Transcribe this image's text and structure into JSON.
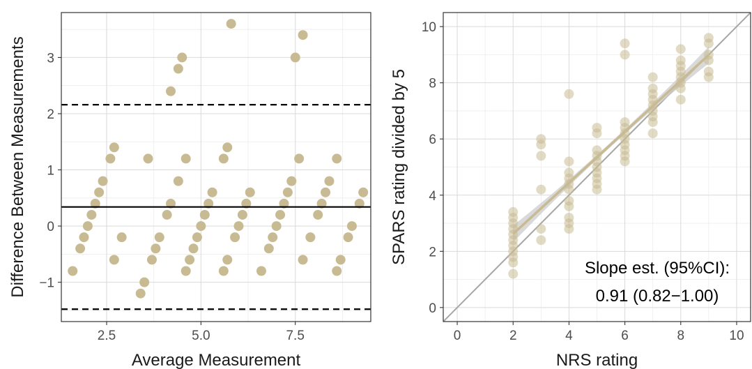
{
  "chart_data": [
    {
      "type": "scatter",
      "xlabel": "Average Measurement",
      "ylabel": "Difference Between Measurements",
      "xlim": [
        1.3,
        9.5
      ],
      "ylim": [
        -1.7,
        3.8
      ],
      "x_ticks": [
        2.5,
        5.0,
        7.5
      ],
      "x_tick_labels": [
        "2.5",
        "5.0",
        "7.5"
      ],
      "y_ticks": [
        -1,
        0,
        1,
        2,
        3
      ],
      "y_tick_labels": [
        "−1",
        "0",
        "1",
        "2",
        "3"
      ],
      "grid": true,
      "point_color": "#c8bb93",
      "reference_lines": [
        {
          "type": "mean",
          "value": 0.34,
          "style": "solid"
        },
        {
          "type": "upper_loa",
          "value": 2.16,
          "style": "dashed"
        },
        {
          "type": "lower_loa",
          "value": -1.48,
          "style": "dashed"
        }
      ],
      "points": [
        [
          1.6,
          -0.8
        ],
        [
          1.8,
          -0.4
        ],
        [
          1.9,
          -0.2
        ],
        [
          2.0,
          0.0
        ],
        [
          2.1,
          0.2
        ],
        [
          2.2,
          0.4
        ],
        [
          2.3,
          0.6
        ],
        [
          2.4,
          0.8
        ],
        [
          2.6,
          1.2
        ],
        [
          2.7,
          1.4
        ],
        [
          2.7,
          -0.6
        ],
        [
          2.9,
          -0.2
        ],
        [
          3.4,
          -1.2
        ],
        [
          3.5,
          -1.0
        ],
        [
          3.6,
          1.2
        ],
        [
          3.7,
          -0.6
        ],
        [
          3.8,
          -0.4
        ],
        [
          3.9,
          -0.2
        ],
        [
          4.1,
          0.2
        ],
        [
          4.2,
          0.4
        ],
        [
          4.2,
          2.4
        ],
        [
          4.4,
          2.8
        ],
        [
          4.4,
          0.8
        ],
        [
          4.5,
          3.0
        ],
        [
          4.6,
          1.2
        ],
        [
          4.6,
          -0.8
        ],
        [
          4.7,
          -0.6
        ],
        [
          4.8,
          -0.4
        ],
        [
          4.9,
          -0.2
        ],
        [
          5.0,
          0.0
        ],
        [
          5.1,
          0.2
        ],
        [
          5.2,
          0.4
        ],
        [
          5.3,
          0.6
        ],
        [
          5.6,
          1.2
        ],
        [
          5.6,
          -0.8
        ],
        [
          5.7,
          1.4
        ],
        [
          5.7,
          -0.6
        ],
        [
          5.8,
          3.6
        ],
        [
          5.9,
          -0.2
        ],
        [
          6.0,
          0.0
        ],
        [
          6.1,
          0.2
        ],
        [
          6.2,
          0.4
        ],
        [
          6.3,
          0.6
        ],
        [
          6.6,
          -0.8
        ],
        [
          6.8,
          -0.4
        ],
        [
          6.9,
          -0.2
        ],
        [
          7.0,
          0.0
        ],
        [
          7.1,
          0.2
        ],
        [
          7.2,
          0.4
        ],
        [
          7.3,
          0.6
        ],
        [
          7.4,
          0.8
        ],
        [
          7.5,
          3.0
        ],
        [
          7.6,
          1.2
        ],
        [
          7.7,
          -0.6
        ],
        [
          7.7,
          3.4
        ],
        [
          7.9,
          -0.2
        ],
        [
          8.1,
          0.2
        ],
        [
          8.2,
          0.4
        ],
        [
          8.3,
          0.6
        ],
        [
          8.4,
          0.8
        ],
        [
          8.6,
          1.2
        ],
        [
          8.6,
          -0.8
        ],
        [
          8.7,
          -0.6
        ],
        [
          8.9,
          -0.2
        ],
        [
          9.0,
          0.0
        ],
        [
          9.2,
          0.4
        ],
        [
          9.3,
          0.6
        ]
      ]
    },
    {
      "type": "scatter",
      "xlabel": "NRS rating",
      "ylabel": "SPARS rating divided by 5",
      "xlim": [
        -0.5,
        10.5
      ],
      "ylim": [
        -0.5,
        10.5
      ],
      "x_ticks": [
        0,
        2,
        4,
        6,
        8,
        10
      ],
      "x_tick_labels": [
        "0",
        "2",
        "4",
        "6",
        "8",
        "10"
      ],
      "y_ticks": [
        0,
        2,
        4,
        6,
        8,
        10
      ],
      "y_tick_labels": [
        "0",
        "2",
        "4",
        "6",
        "8",
        "10"
      ],
      "grid": true,
      "point_color": "#c8bb93",
      "identity_line_color": "#a6a6a6",
      "fit_line_color": "#c8bb93",
      "ci_band_color": "#cccccc",
      "fit": {
        "intercept": 0.8,
        "slope": 0.91,
        "ci_lower": 0.82,
        "ci_upper": 1.0,
        "x_range": [
          2,
          9
        ]
      },
      "annotation": {
        "line1": "Slope est. (95%CI):",
        "line2": "0.91 (0.82−1.00)"
      },
      "points": [
        [
          2,
          1.2
        ],
        [
          2,
          1.6
        ],
        [
          2,
          1.8
        ],
        [
          2,
          2.0
        ],
        [
          2,
          2.2
        ],
        [
          2,
          2.4
        ],
        [
          2,
          2.6
        ],
        [
          2,
          2.8
        ],
        [
          2,
          3.0
        ],
        [
          2,
          3.2
        ],
        [
          2,
          3.4
        ],
        [
          3,
          2.4
        ],
        [
          3,
          2.8
        ],
        [
          3,
          4.2
        ],
        [
          3,
          5.4
        ],
        [
          3,
          5.8
        ],
        [
          3,
          6.0
        ],
        [
          4,
          2.8
        ],
        [
          4,
          3.0
        ],
        [
          4,
          3.2
        ],
        [
          4,
          3.6
        ],
        [
          4,
          3.8
        ],
        [
          4,
          4.2
        ],
        [
          4,
          4.4
        ],
        [
          4,
          4.6
        ],
        [
          4,
          4.8
        ],
        [
          4,
          5.2
        ],
        [
          4,
          7.6
        ],
        [
          5,
          4.2
        ],
        [
          5,
          4.4
        ],
        [
          5,
          4.6
        ],
        [
          5,
          4.8
        ],
        [
          5,
          5.0
        ],
        [
          5,
          5.2
        ],
        [
          5,
          5.4
        ],
        [
          5,
          5.6
        ],
        [
          5,
          6.2
        ],
        [
          5,
          6.4
        ],
        [
          6,
          5.2
        ],
        [
          6,
          5.4
        ],
        [
          6,
          5.6
        ],
        [
          6,
          5.8
        ],
        [
          6,
          6.0
        ],
        [
          6,
          6.2
        ],
        [
          6,
          6.4
        ],
        [
          6,
          6.6
        ],
        [
          6,
          9.0
        ],
        [
          6,
          9.4
        ],
        [
          7,
          6.2
        ],
        [
          7,
          6.6
        ],
        [
          7,
          6.8
        ],
        [
          7,
          7.0
        ],
        [
          7,
          7.2
        ],
        [
          7,
          7.4
        ],
        [
          7,
          7.6
        ],
        [
          7,
          7.8
        ],
        [
          7,
          8.2
        ],
        [
          8,
          7.4
        ],
        [
          8,
          7.8
        ],
        [
          8,
          8.0
        ],
        [
          8,
          8.2
        ],
        [
          8,
          8.4
        ],
        [
          8,
          8.6
        ],
        [
          8,
          8.8
        ],
        [
          8,
          9.2
        ],
        [
          9,
          8.2
        ],
        [
          9,
          8.4
        ],
        [
          9,
          8.8
        ],
        [
          9,
          9.0
        ],
        [
          9,
          9.4
        ],
        [
          9,
          9.6
        ]
      ]
    }
  ]
}
